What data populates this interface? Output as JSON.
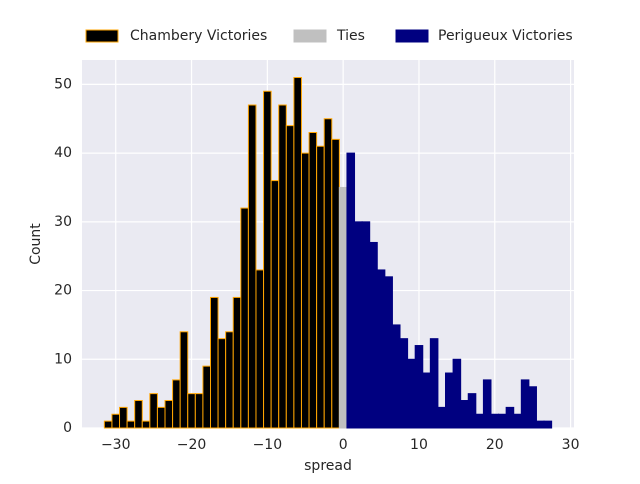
{
  "chart_data": {
    "type": "histogram",
    "xlabel": "spread",
    "ylabel": "Count",
    "xlim": [
      -34.45,
      30.45
    ],
    "ylim": [
      0,
      53.55
    ],
    "xticks": [
      {
        "value": -30,
        "label": "−30"
      },
      {
        "value": -20,
        "label": "−20"
      },
      {
        "value": -10,
        "label": "−10"
      },
      0,
      10,
      20,
      30
    ],
    "yticks": [
      0,
      10,
      20,
      30,
      40,
      50
    ],
    "grid": true,
    "legend": "top",
    "series": [
      {
        "name": "Chambery Victories",
        "color": "#000000",
        "edgecolor": "#ffa500",
        "bins": [
          -31.5,
          -30.5,
          -29.5,
          -28.5,
          -27.5,
          -26.5,
          -25.5,
          -24.5,
          -23.5,
          -22.5,
          -21.5,
          -20.5,
          -19.5,
          -18.5,
          -17.5,
          -16.5,
          -15.5,
          -14.5,
          -13.5,
          -12.5,
          -11.5,
          -10.5,
          -9.5,
          -8.5,
          -7.5,
          -6.5,
          -5.5,
          -4.5,
          -3.5,
          -2.5,
          -1.5,
          -0.5
        ],
        "values": [
          1,
          2,
          3,
          1,
          4,
          1,
          5,
          3,
          4,
          7,
          14,
          5,
          5,
          9,
          19,
          13,
          14,
          19,
          32,
          47,
          23,
          49,
          36,
          47,
          44,
          51,
          40,
          43,
          41,
          45,
          42
        ]
      },
      {
        "name": "Ties",
        "color": "#c0c0c0",
        "edgecolor": "#c0c0c0",
        "bins": [
          -0.5,
          0.5
        ],
        "values": [
          35
        ]
      },
      {
        "name": "Perigueux Victories",
        "color": "#000080",
        "edgecolor": "#000080",
        "bins": [
          0.5,
          1.5,
          2.5,
          3.5,
          4.5,
          5.5,
          6.5,
          7.5,
          8.5,
          9.5,
          10.5,
          11.5,
          12.5,
          13.5,
          14.5,
          15.5,
          16.5,
          17.5,
          18.5,
          19.5,
          20.5,
          21.5,
          22.5,
          23.5,
          24.5,
          25.5,
          26.5,
          27.5
        ],
        "values": [
          40,
          30,
          30,
          27,
          23,
          22,
          15,
          13,
          10,
          12,
          8,
          13,
          3,
          8,
          10,
          4,
          5,
          2,
          7,
          2,
          2,
          3,
          2,
          7,
          6,
          1,
          1
        ]
      }
    ]
  }
}
